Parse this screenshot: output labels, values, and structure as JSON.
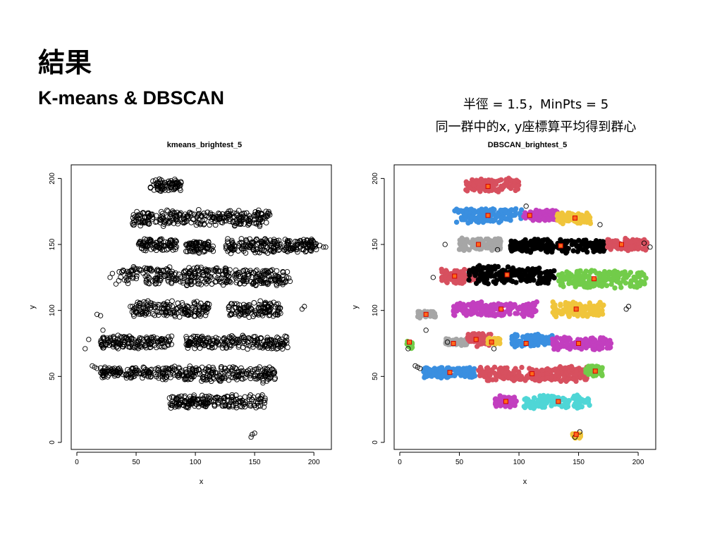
{
  "slide": {
    "title": "結果",
    "subtitle": "K-means & DBSCAN",
    "note_line1": "半徑 = 1.5，MinPts = 5",
    "note_line2": "同一群中的x, y座標算平均得到群心"
  },
  "chart_data": [
    {
      "type": "scatter",
      "title": "kmeans_brightest_5",
      "xlabel": "x",
      "ylabel": "y",
      "xlim": [
        0,
        210
      ],
      "ylim": [
        0,
        205
      ],
      "xticks": [
        0,
        50,
        100,
        150,
        200
      ],
      "yticks": [
        0,
        50,
        100,
        150,
        200
      ],
      "grid": false,
      "marker": "open circle",
      "series": [
        {
          "color": "#000000",
          "blobs": [
            {
              "x": [
                62,
                88
              ],
              "y": 195,
              "h": 11
            },
            {
              "x": [
                47,
                163
              ],
              "y": 170,
              "h": 13
            },
            {
              "x": [
                52,
                85
              ],
              "y": 150,
              "h": 10
            },
            {
              "x": [
                92,
                115
              ],
              "y": 148,
              "h": 10
            },
            {
              "x": [
                125,
                172
              ],
              "y": 149,
              "h": 12
            },
            {
              "x": [
                175,
                205
              ],
              "y": 149,
              "h": 11
            },
            {
              "x": [
                35,
                130
              ],
              "y": 126,
              "h": 15
            },
            {
              "x": [
                133,
                180
              ],
              "y": 125,
              "h": 14
            },
            {
              "x": [
                45,
                112
              ],
              "y": 101,
              "h": 13
            },
            {
              "x": [
                128,
                172
              ],
              "y": 101,
              "h": 13
            },
            {
              "x": [
                20,
                80
              ],
              "y": 76,
              "h": 11
            },
            {
              "x": [
                92,
                178
              ],
              "y": 76,
              "h": 11
            },
            {
              "x": [
                20,
                63
              ],
              "y": 53,
              "h": 9
            },
            {
              "x": [
                66,
                168
              ],
              "y": 52,
              "h": 12
            },
            {
              "x": [
                78,
                160
              ],
              "y": 31,
              "h": 11
            }
          ],
          "points": [
            [
              17,
              97
            ],
            [
              20,
              96
            ],
            [
              7,
              71
            ],
            [
              10,
              78
            ],
            [
              22,
              85
            ],
            [
              40,
              76
            ],
            [
              15,
              57
            ],
            [
              17,
              56
            ],
            [
              13,
              58
            ],
            [
              152,
              48
            ],
            [
              157,
              45
            ],
            [
              192,
              103
            ],
            [
              190,
              101
            ],
            [
              148,
              6
            ],
            [
              147,
              4
            ],
            [
              150,
              7
            ],
            [
              28,
              125
            ],
            [
              33,
              120
            ],
            [
              30,
              128
            ],
            [
              141,
              147
            ],
            [
              137,
              149
            ],
            [
              210,
              148
            ],
            [
              208,
              148
            ]
          ]
        }
      ]
    },
    {
      "type": "scatter",
      "title": "DBSCAN_brightest_5",
      "xlabel": "x",
      "ylabel": "y",
      "xlim": [
        0,
        210
      ],
      "ylim": [
        0,
        205
      ],
      "xticks": [
        0,
        50,
        100,
        150,
        200
      ],
      "yticks": [
        0,
        50,
        100,
        150,
        200
      ],
      "grid": false,
      "marker": "filled circle",
      "clusters": [
        {
          "color": "#d7505f",
          "x": [
            55,
            100
          ],
          "y": 195,
          "h": 11,
          "centroid": [
            74,
            194
          ]
        },
        {
          "color": "#3a8fe0",
          "x": [
            46,
            103
          ],
          "y": 172,
          "h": 12,
          "centroid": [
            74,
            172
          ]
        },
        {
          "color": "#c23fbf",
          "x": [
            104,
            132
          ],
          "y": 172,
          "h": 9,
          "centroid": [
            109,
            172
          ]
        },
        {
          "color": "#f0c53b",
          "x": [
            132,
            160
          ],
          "y": 170,
          "h": 9,
          "centroid": [
            147,
            170
          ]
        },
        {
          "color": "#a6a6a6",
          "x": [
            50,
            85
          ],
          "y": 150,
          "h": 10,
          "centroid": [
            66,
            150
          ]
        },
        {
          "color": "#000000",
          "x": [
            92,
            172
          ],
          "y": 149,
          "h": 11,
          "centroid": [
            135,
            149
          ]
        },
        {
          "color": "#d7505f",
          "x": [
            174,
            208
          ],
          "y": 150,
          "h": 10,
          "centroid": [
            186,
            150
          ]
        },
        {
          "color": "#d7505f",
          "x": [
            35,
            65
          ],
          "y": 126,
          "h": 12,
          "centroid": [
            46,
            126
          ]
        },
        {
          "color": "#000000",
          "x": [
            58,
            130
          ],
          "y": 127,
          "h": 15,
          "centroid": [
            90,
            127
          ]
        },
        {
          "color": "#72cc4a",
          "x": [
            133,
            207
          ],
          "y": 124,
          "h": 14,
          "centroid": [
            163,
            124
          ]
        },
        {
          "color": "#c23fbf",
          "x": [
            45,
            115
          ],
          "y": 101,
          "h": 12,
          "centroid": [
            85,
            101
          ]
        },
        {
          "color": "#f0c53b",
          "x": [
            128,
            172
          ],
          "y": 101,
          "h": 13,
          "centroid": [
            148,
            101
          ]
        },
        {
          "color": "#a6a6a6",
          "x": [
            15,
            30
          ],
          "y": 97,
          "h": 6,
          "centroid": [
            22,
            97
          ]
        },
        {
          "color": "#a6a6a6",
          "x": [
            38,
            57
          ],
          "y": 76,
          "h": 6,
          "centroid": [
            45,
            75
          ]
        },
        {
          "color": "#d7505f",
          "x": [
            57,
            77
          ],
          "y": 78,
          "h": 12,
          "centroid": [
            64,
            78
          ]
        },
        {
          "color": "#f0c53b",
          "x": [
            74,
            84
          ],
          "y": 77,
          "h": 5,
          "centroid": [
            77,
            76
          ]
        },
        {
          "color": "#3a8fe0",
          "x": [
            94,
            128
          ],
          "y": 77,
          "h": 10,
          "centroid": [
            106,
            75
          ]
        },
        {
          "color": "#c23fbf",
          "x": [
            128,
            178
          ],
          "y": 75,
          "h": 10,
          "centroid": [
            150,
            75
          ]
        },
        {
          "color": "#72cc4a",
          "x": [
            6,
            11
          ],
          "y": 74,
          "h": 6,
          "centroid": [
            8,
            76
          ]
        },
        {
          "color": "#3a8fe0",
          "x": [
            20,
            63
          ],
          "y": 53,
          "h": 9,
          "centroid": [
            42,
            53
          ]
        },
        {
          "color": "#d7505f",
          "x": [
            66,
            157
          ],
          "y": 52,
          "h": 12,
          "centroid": [
            111,
            52
          ]
        },
        {
          "color": "#72cc4a",
          "x": [
            156,
            170
          ],
          "y": 54,
          "h": 9,
          "centroid": [
            164,
            54
          ]
        },
        {
          "color": "#c23fbf",
          "x": [
            80,
            98
          ],
          "y": 31,
          "h": 9,
          "centroid": [
            89,
            31
          ]
        },
        {
          "color": "#4fd6d6",
          "x": [
            104,
            160
          ],
          "y": 31,
          "h": 11,
          "centroid": [
            133,
            31
          ]
        },
        {
          "color": "#f0c53b",
          "x": [
            145,
            152
          ],
          "y": 5,
          "h": 4,
          "centroid": [
            148,
            6
          ]
        }
      ],
      "noise_color": "#000000",
      "noise_points": [
        [
          15,
          57
        ],
        [
          13,
          58
        ],
        [
          17,
          56
        ],
        [
          7,
          71
        ],
        [
          22,
          85
        ],
        [
          40,
          76
        ],
        [
          38,
          150
        ],
        [
          82,
          146
        ],
        [
          99,
          148
        ],
        [
          192,
          103
        ],
        [
          190,
          101
        ],
        [
          210,
          148
        ],
        [
          205,
          151
        ],
        [
          28,
          125
        ],
        [
          147,
          4
        ],
        [
          151,
          8
        ],
        [
          79,
          71
        ],
        [
          106,
          179
        ],
        [
          168,
          165
        ],
        [
          141,
          147
        ]
      ]
    }
  ]
}
